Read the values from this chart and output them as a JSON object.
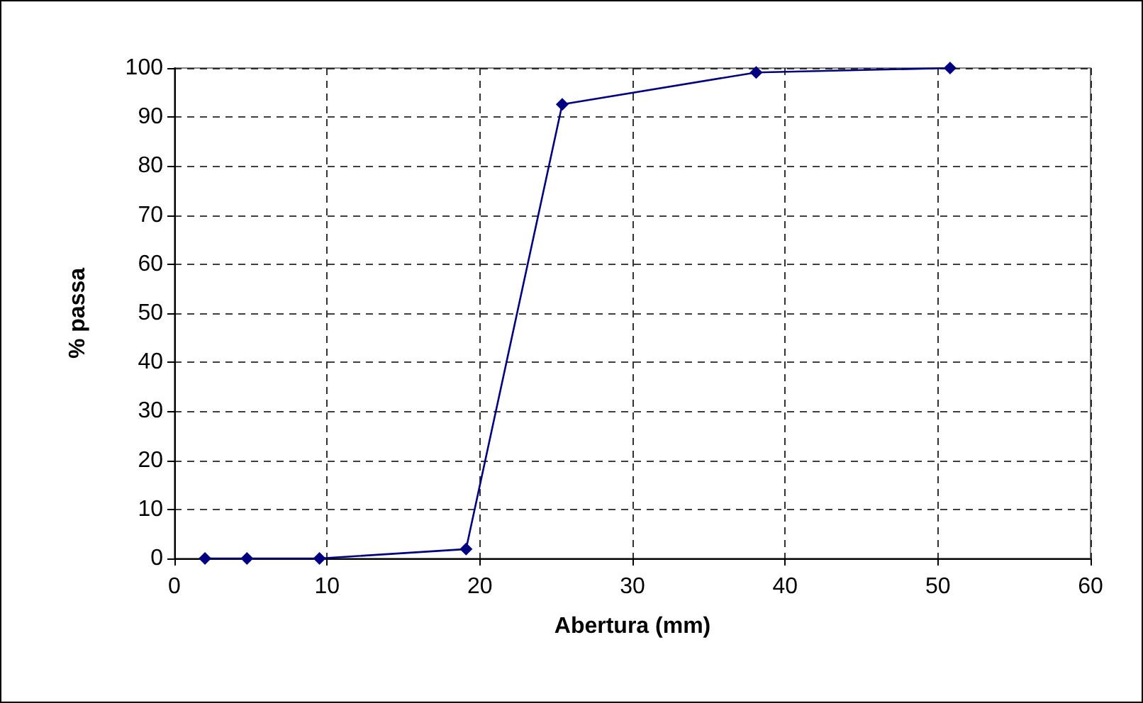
{
  "chart_data": {
    "type": "line",
    "xlabel": "Abertura (mm)",
    "ylabel": "% passa",
    "x": [
      2,
      4.75,
      9.5,
      19.1,
      25.4,
      38.1,
      50.8
    ],
    "series": [
      {
        "color": "#000080",
        "values": [
          0,
          0,
          0,
          1.9,
          92.6,
          99.1,
          100
        ]
      }
    ],
    "xlim": [
      0,
      60
    ],
    "xticks": [
      0,
      10,
      20,
      30,
      40,
      50,
      60
    ],
    "ylim": [
      0,
      100
    ],
    "yticks": [
      0,
      10,
      20,
      30,
      40,
      50,
      60,
      70,
      80,
      90,
      100
    ],
    "grid": true,
    "marker": "diamond",
    "line_style": "solid"
  }
}
